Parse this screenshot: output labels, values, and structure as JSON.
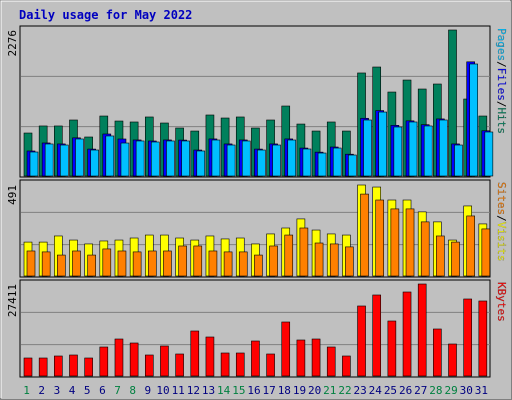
{
  "title": "Daily usage for May 2022",
  "legend_separator": "/",
  "chart_data": [
    {
      "type": "bar",
      "ylim": [
        0,
        2276
      ],
      "yticks": [
        2276
      ],
      "series": [
        {
          "name": "Hits",
          "color": "#00805c",
          "values": [
            670,
            780,
            780,
            873,
            608,
            935,
            857,
            842,
            920,
            826,
            748,
            701,
            951,
            904,
            920,
            748,
            873,
            1091,
            810,
            701,
            842,
            701,
            1606,
            1699,
            1309,
            1496,
            1356,
            1434,
            2276,
            1200,
            935
          ]
        },
        {
          "name": "Files",
          "color": "#0000ff",
          "values": [
            390,
            515,
            500,
            595,
            420,
            655,
            577,
            562,
            546,
            562,
            560,
            405,
            578,
            500,
            562,
            420,
            500,
            578,
            436,
            372,
            452,
            340,
            900,
            1020,
            790,
            860,
            800,
            890,
            500,
            1780,
            705
          ]
        },
        {
          "name": "Pages",
          "color": "#00c0ff",
          "values": [
            374,
            499,
            483,
            577,
            405,
            624,
            514,
            546,
            530,
            546,
            546,
            390,
            561,
            483,
            546,
            405,
            483,
            561,
            421,
            358,
            436,
            327,
            873,
            997,
            764,
            842,
            780,
            873,
            483,
            1746,
            686
          ]
        }
      ]
    },
    {
      "type": "bar",
      "ylim": [
        0,
        491
      ],
      "yticks": [
        491
      ],
      "series": [
        {
          "name": "Visits",
          "color": "#ffff00",
          "values": [
            183,
            183,
            216,
            194,
            173,
            189,
            194,
            205,
            221,
            221,
            205,
            194,
            216,
            200,
            205,
            173,
            227,
            259,
            308,
            248,
            227,
            221,
            491,
            480,
            410,
            410,
            346,
            292,
            194,
            378,
            281
          ]
        },
        {
          "name": "Sites",
          "color": "#ff8000",
          "values": [
            135,
            130,
            113,
            135,
            113,
            146,
            135,
            130,
            135,
            135,
            162,
            162,
            135,
            130,
            130,
            113,
            162,
            221,
            259,
            178,
            173,
            157,
            442,
            410,
            362,
            362,
            292,
            216,
            183,
            324,
            254
          ]
        }
      ]
    },
    {
      "type": "bar",
      "ylim": [
        0,
        27411
      ],
      "yticks": [
        27411
      ],
      "categories": [
        "1",
        "2",
        "3",
        "4",
        "5",
        "6",
        "7",
        "8",
        "9",
        "10",
        "11",
        "12",
        "13",
        "14",
        "15",
        "16",
        "17",
        "18",
        "19",
        "20",
        "21",
        "22",
        "23",
        "24",
        "25",
        "26",
        "27",
        "28",
        "29",
        "30",
        "31"
      ],
      "category_colors": [
        "#008040",
        "#000080",
        "#000080",
        "#000080",
        "#000080",
        "#000080",
        "#008040",
        "#008040",
        "#000080",
        "#000080",
        "#000080",
        "#000080",
        "#000080",
        "#008040",
        "#008040",
        "#000080",
        "#000080",
        "#000080",
        "#000080",
        "#000080",
        "#008040",
        "#008040",
        "#000080",
        "#000080",
        "#000080",
        "#000080",
        "#000080",
        "#008040",
        "#008040",
        "#000080",
        "#000080"
      ],
      "series": [
        {
          "name": "KBytes",
          "color": "#ff0000",
          "values": [
            5363,
            5363,
            5960,
            6258,
            5363,
            8641,
            11024,
            9833,
            6258,
            8939,
            6556,
            13409,
            11620,
            6854,
            6854,
            10429,
            6556,
            16090,
            10727,
            11024,
            8641,
            5960,
            20858,
            24136,
            16388,
            25030,
            27411,
            14005,
            9535,
            22944,
            22348
          ]
        }
      ]
    }
  ]
}
